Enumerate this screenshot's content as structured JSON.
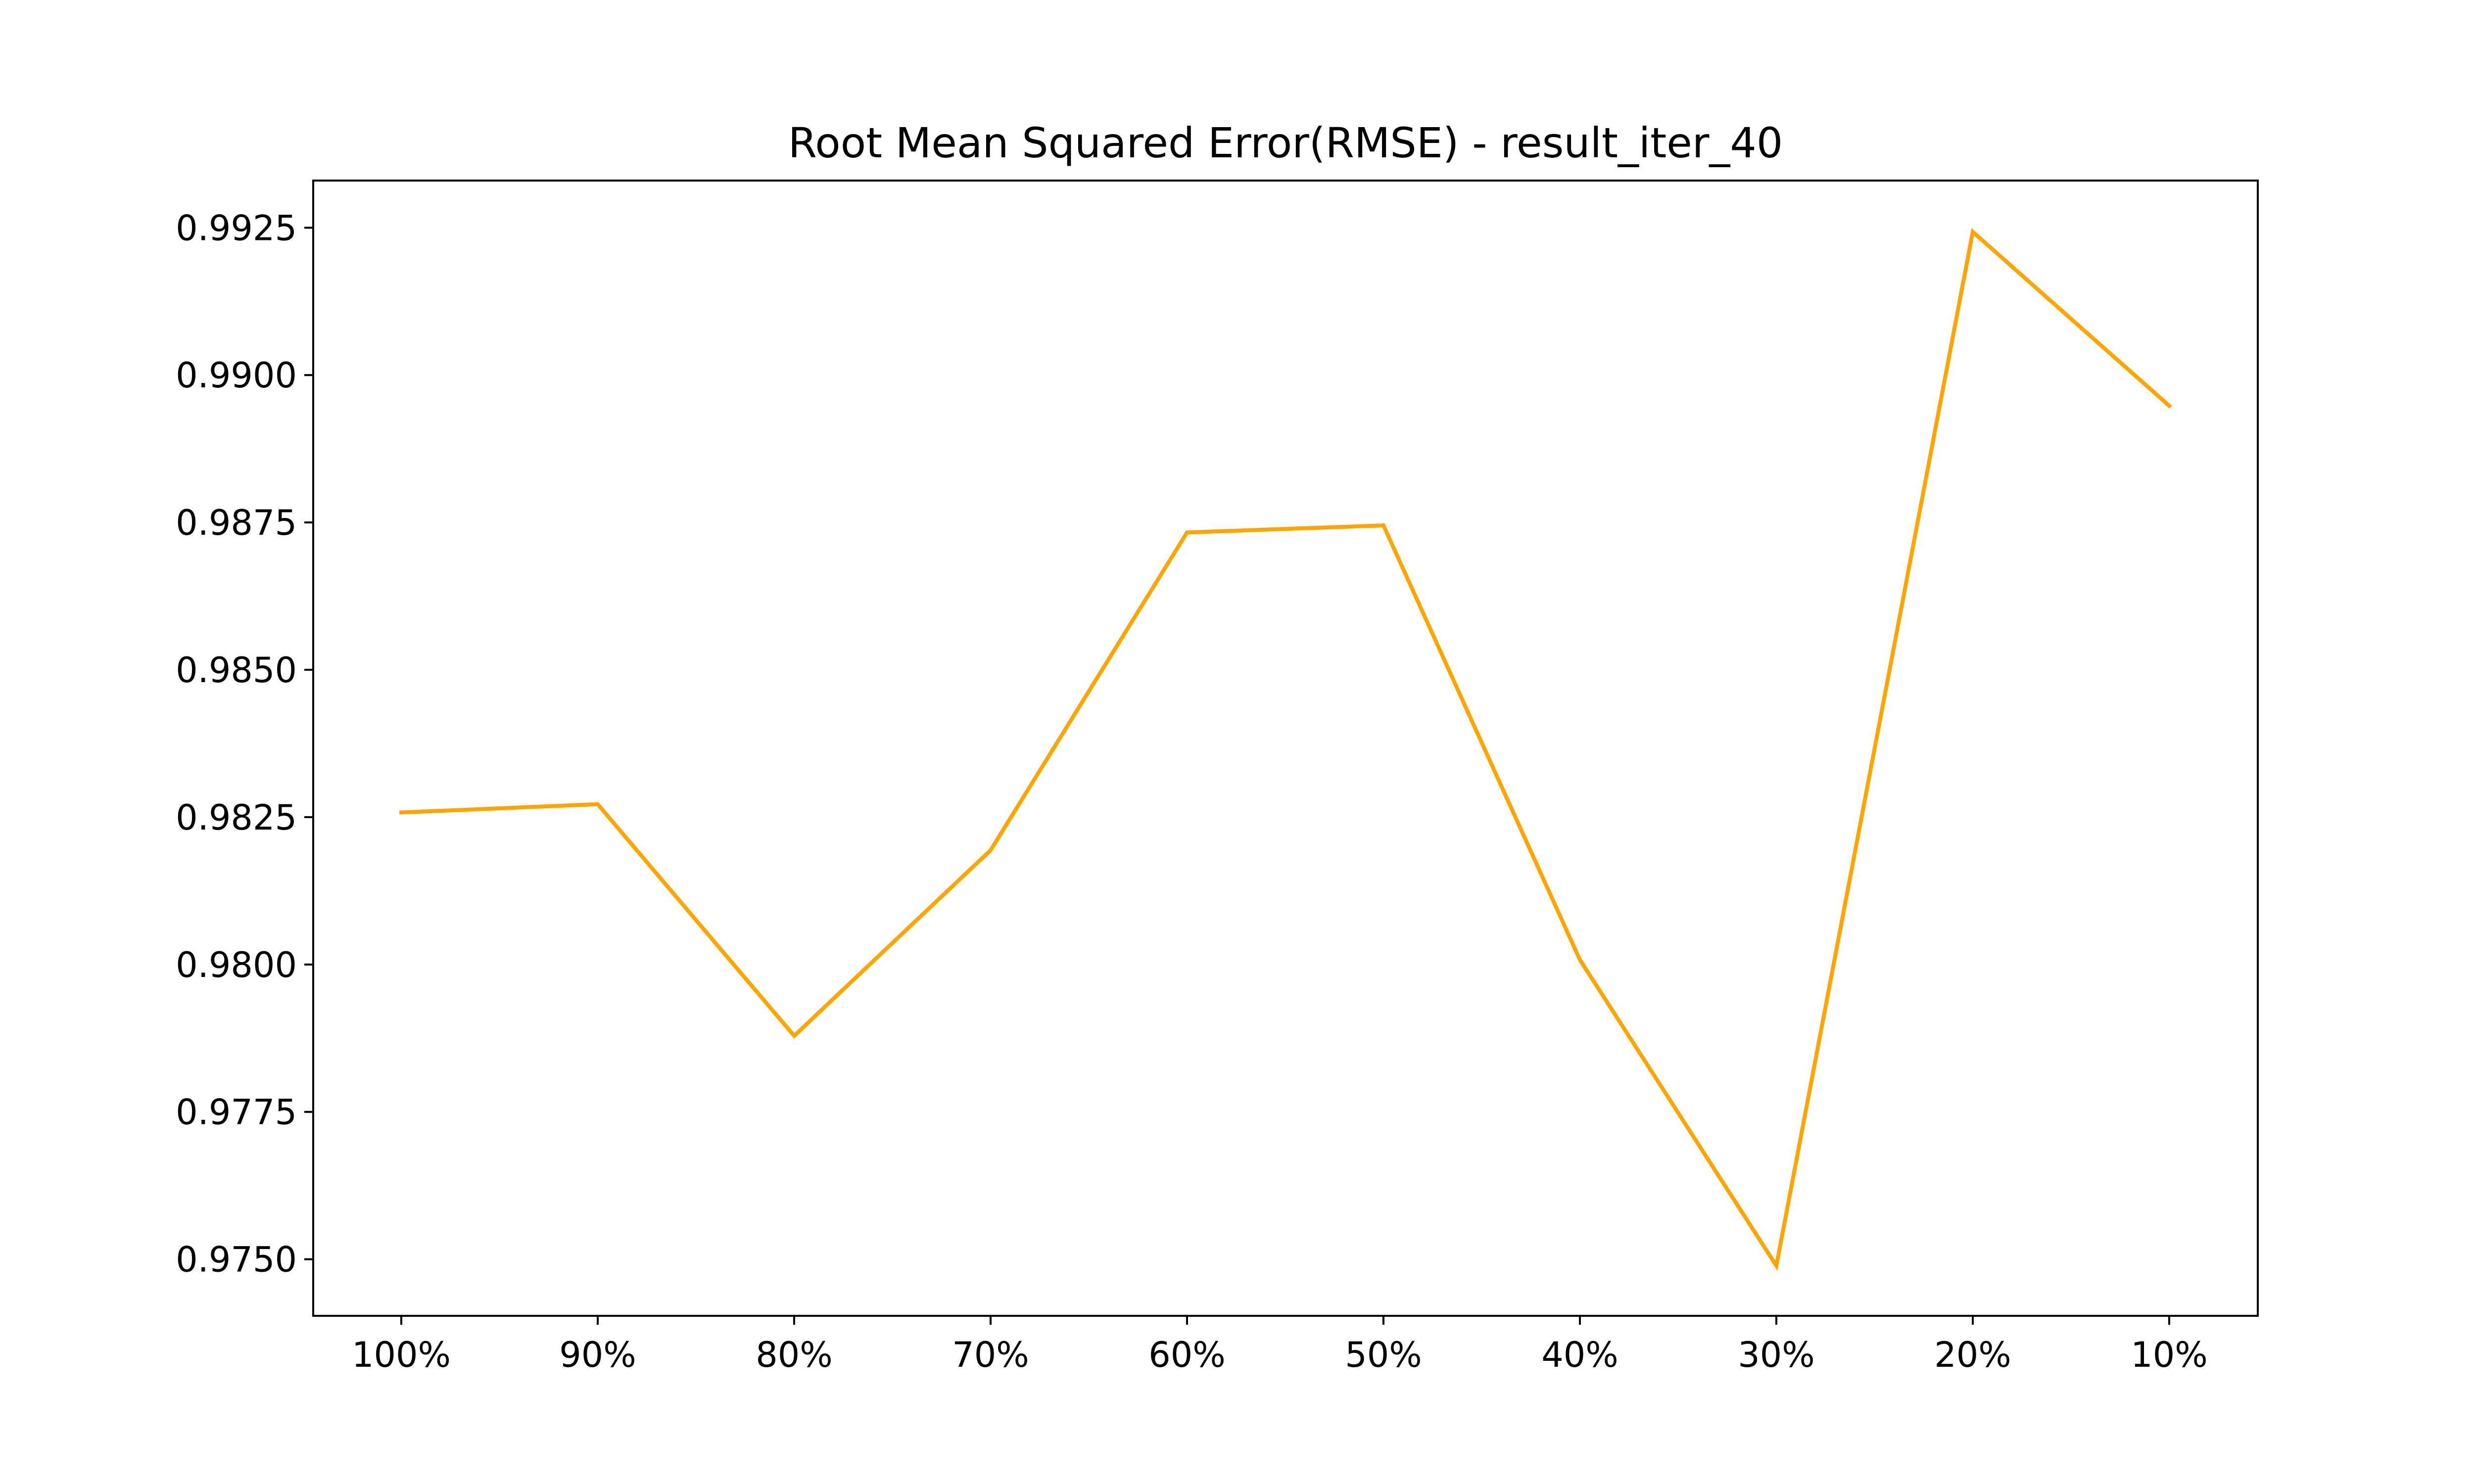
{
  "chart_data": {
    "type": "line",
    "title": "Root Mean Squared Error(RMSE) - result_iter_40",
    "xlabel": "",
    "ylabel": "",
    "categories": [
      "100%",
      "90%",
      "80%",
      "70%",
      "60%",
      "50%",
      "40%",
      "30%",
      "20%",
      "10%"
    ],
    "series": [
      {
        "values": [
          0.98258,
          0.98272,
          0.97879,
          0.98194,
          0.98733,
          0.98745,
          0.98008,
          0.97489,
          0.99243,
          0.98948
        ],
        "color": "#ffa500"
      }
    ],
    "ylim": [
      0.97404,
      0.9933
    ],
    "yticks": [
      0.975,
      0.9775,
      0.98,
      0.9825,
      0.985,
      0.9875,
      0.99,
      0.9925
    ],
    "ytick_labels": [
      "0.9750",
      "0.9775",
      "0.9800",
      "0.9825",
      "0.9850",
      "0.9875",
      "0.9900",
      "0.9925"
    ],
    "grid": false,
    "legend": "none"
  }
}
